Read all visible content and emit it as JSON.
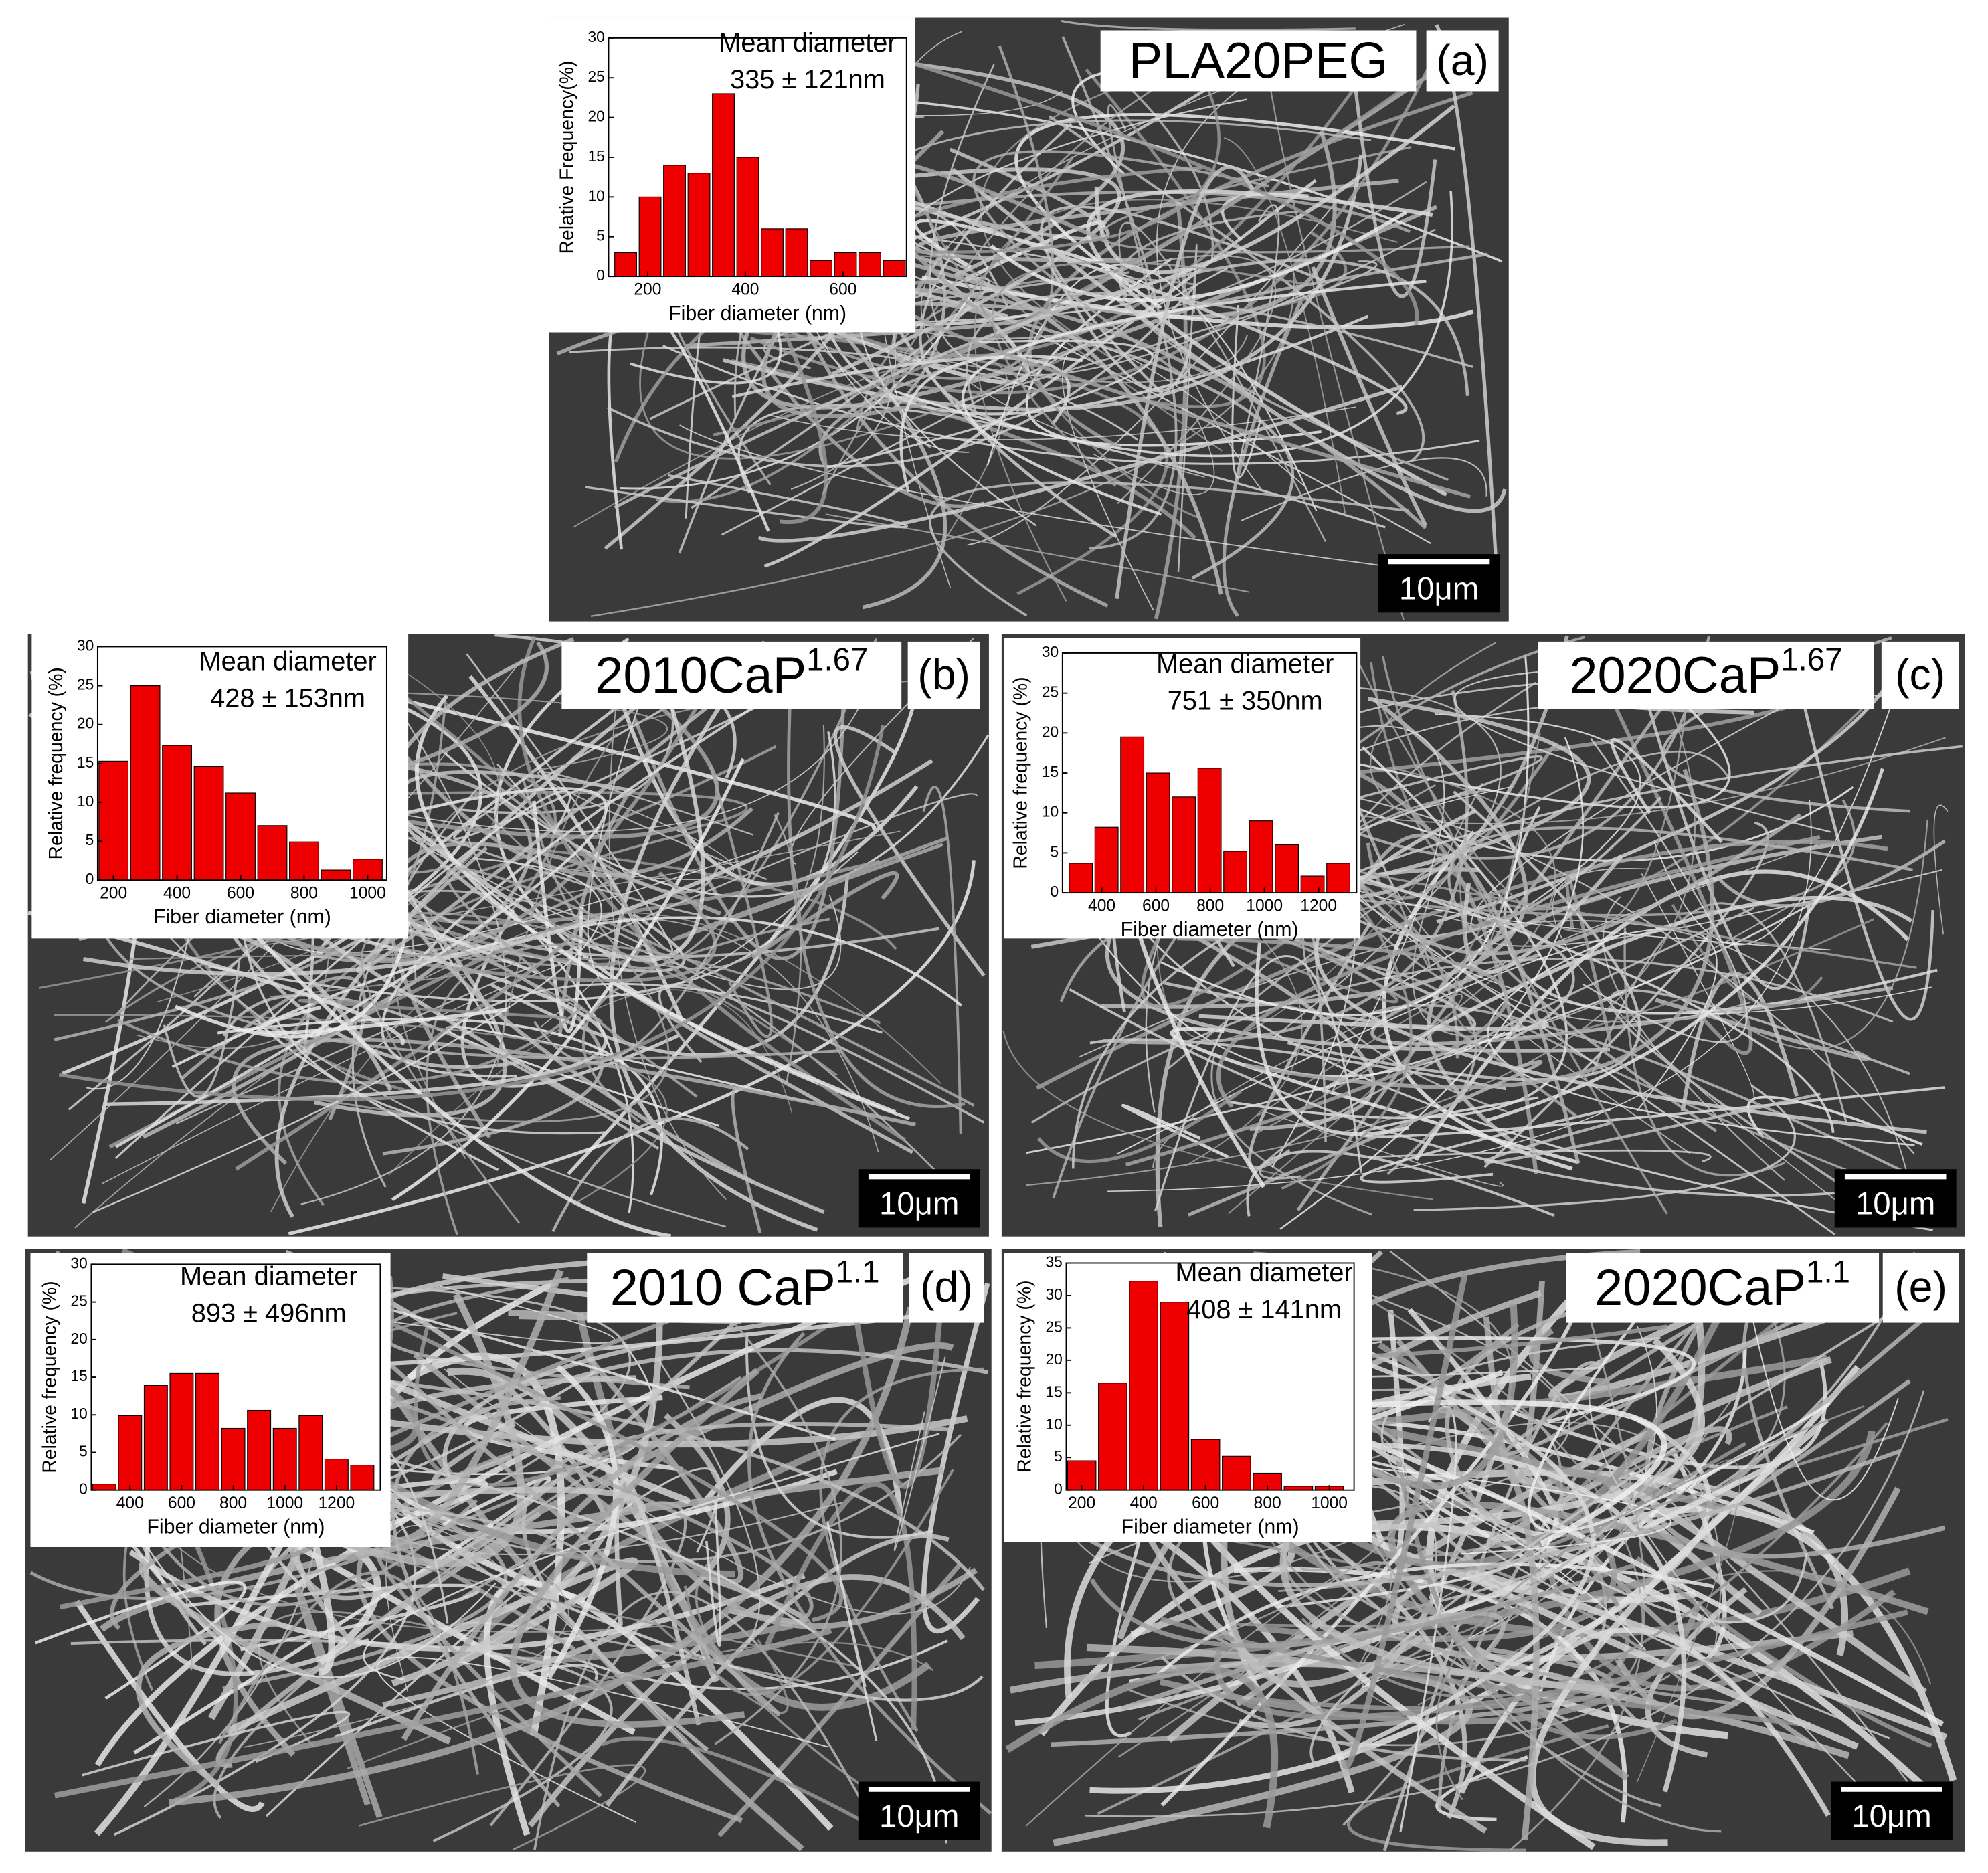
{
  "chart_data": [
    {
      "type": "histogram",
      "panel": "(a)",
      "sample": "PLA20PEG",
      "annotation": [
        "Mean diameter",
        "335 ± 121nm"
      ],
      "scale_bar": "10μm",
      "x_label": "Fiber diameter (nm)",
      "y_label": "Relative Frequency(%)",
      "color": "#ee0000",
      "bins": [
        130,
        180,
        230,
        280,
        330,
        380,
        430,
        480,
        530,
        580,
        630,
        680,
        730
      ],
      "values": [
        3,
        10,
        14,
        13,
        23,
        15,
        6,
        6,
        2,
        3,
        3,
        2
      ],
      "xlim": [
        120,
        730
      ],
      "xticks": [
        200,
        400,
        600
      ],
      "ylim": [
        0,
        30
      ],
      "yticks": [
        0,
        5,
        10,
        15,
        20,
        25,
        30
      ]
    },
    {
      "type": "histogram",
      "panel": "(b)",
      "sample": "2010CaP",
      "sample_superscript": "1.67",
      "annotation": [
        "Mean diameter",
        "428 ± 153nm"
      ],
      "scale_bar": "10μm",
      "x_label": "Fiber diameter (nm)",
      "y_label": "Relative frequency (%)",
      "color": "#ee0000",
      "bins": [
        150,
        250,
        350,
        450,
        550,
        650,
        750,
        850,
        950,
        1050
      ],
      "values": [
        15.3,
        25,
        17.3,
        14.6,
        11.2,
        7,
        4.9,
        1.3,
        2.7
      ],
      "xlim": [
        150,
        1060
      ],
      "xticks": [
        200,
        400,
        600,
        800,
        1000
      ],
      "ylim": [
        0,
        30
      ],
      "yticks": [
        0,
        5,
        10,
        15,
        20,
        25,
        30
      ]
    },
    {
      "type": "histogram",
      "panel": "(c)",
      "sample": "2020CaP",
      "sample_superscript": "1.67",
      "annotation": [
        "Mean diameter",
        "751 ± 350nm"
      ],
      "scale_bar": "10μm",
      "x_label": "Fiber diameter (nm)",
      "y_label": "Relative frequency (%)",
      "color": "#ee0000",
      "bins": [
        275,
        370,
        465,
        560,
        655,
        750,
        845,
        940,
        1035,
        1130,
        1225,
        1320
      ],
      "values": [
        3.7,
        8.2,
        19.5,
        15,
        12,
        15.6,
        5.2,
        9,
        6,
        2.1,
        3.7
      ],
      "xlim": [
        255,
        1340
      ],
      "xticks": [
        400,
        600,
        800,
        1000,
        1200
      ],
      "ylim": [
        0,
        30
      ],
      "yticks": [
        0,
        5,
        10,
        15,
        20,
        25,
        30
      ]
    },
    {
      "type": "histogram",
      "panel": "(d)",
      "sample": "2010 CaP",
      "sample_superscript": "1.1",
      "annotation": [
        "Mean diameter",
        "893 ± 496nm"
      ],
      "scale_bar": "10μm",
      "x_label": "Fiber diameter (nm)",
      "y_label": "Relative frequency (%)",
      "color": "#ee0000",
      "bins": [
        250,
        350,
        450,
        550,
        650,
        750,
        850,
        950,
        1050,
        1150,
        1250,
        1350
      ],
      "values": [
        0.8,
        9.9,
        13.9,
        15.5,
        15.5,
        8.2,
        10.6,
        8.2,
        9.9,
        4.1,
        3.3
      ],
      "xlim": [
        250,
        1370
      ],
      "xticks": [
        400,
        600,
        800,
        1000,
        1200
      ],
      "ylim": [
        0,
        30
      ],
      "yticks": [
        0,
        5,
        10,
        15,
        20,
        25,
        30
      ]
    },
    {
      "type": "histogram",
      "panel": "(e)",
      "sample": "2020CaP",
      "sample_superscript": "1.1",
      "annotation": [
        "Mean diameter",
        "408 ± 141nm"
      ],
      "scale_bar": "10μm",
      "x_label": "Fiber diameter (nm)",
      "y_label": "Relative frequency (%)",
      "color": "#ee0000",
      "bins": [
        150,
        250,
        350,
        450,
        550,
        650,
        750,
        850,
        950,
        1050
      ],
      "values": [
        4.5,
        16.5,
        32.2,
        29,
        7.8,
        5.2,
        2.6,
        0.6,
        0.6
      ],
      "xlim": [
        150,
        1080
      ],
      "xticks": [
        200,
        400,
        600,
        800,
        1000
      ],
      "ylim": [
        0,
        35
      ],
      "yticks": [
        0,
        5,
        10,
        15,
        20,
        25,
        30,
        35
      ]
    }
  ]
}
